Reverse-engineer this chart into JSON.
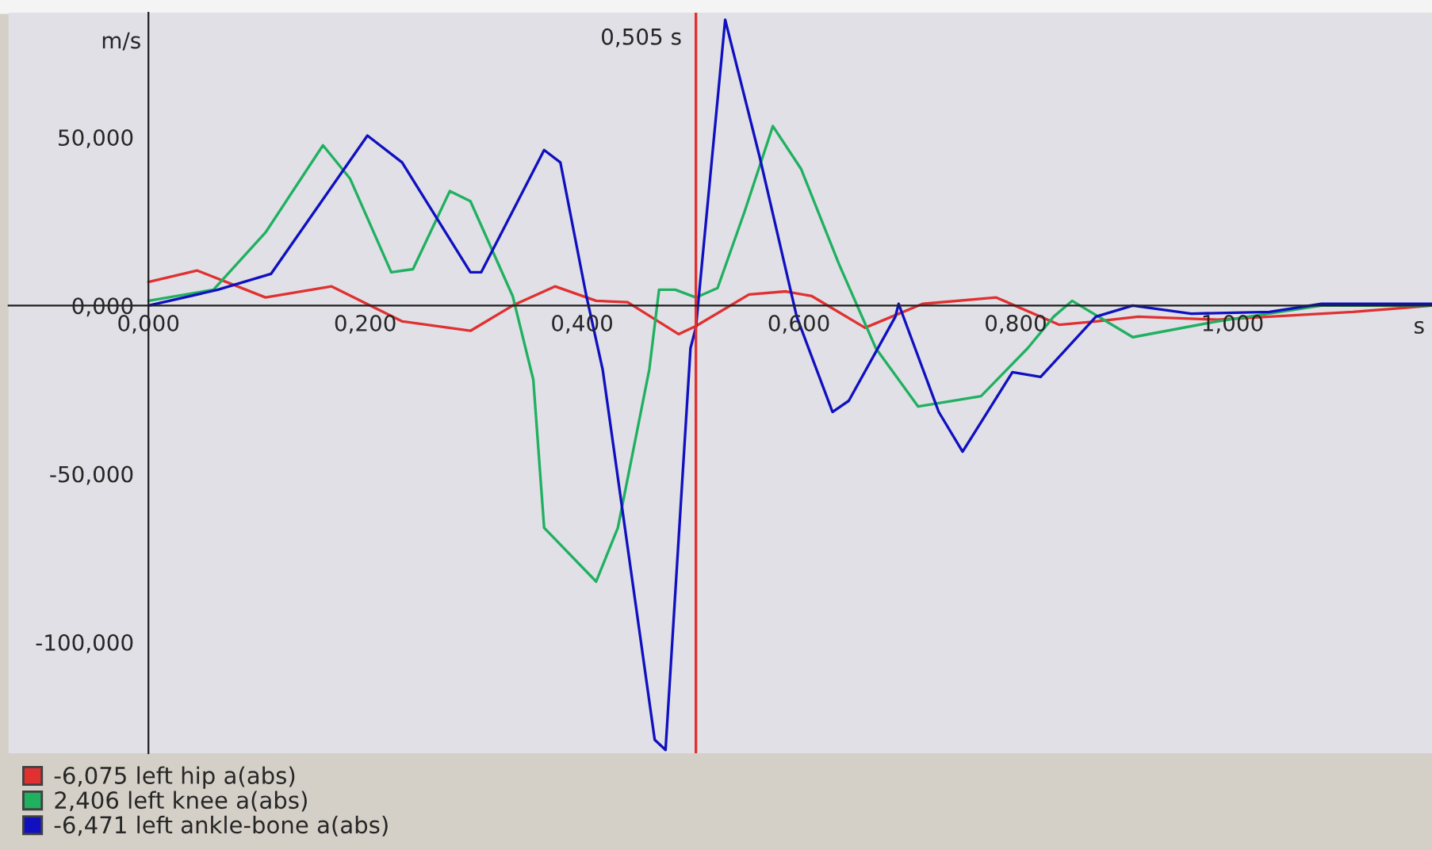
{
  "chart_data": {
    "type": "line",
    "xlabel": "s",
    "ylabel": "m/s",
    "xlim": [
      -0.129,
      1.184
    ],
    "ylim": [
      -133,
      87
    ],
    "xticks": [
      {
        "value": 0,
        "label": "0,000"
      },
      {
        "value": 0.2,
        "label": "0,200"
      },
      {
        "value": 0.4,
        "label": "0,400"
      },
      {
        "value": 0.6,
        "label": "0,600"
      },
      {
        "value": 0.8,
        "label": "0,800"
      },
      {
        "value": 1.0,
        "label": "1,000"
      }
    ],
    "yticks": [
      {
        "value": -100,
        "label": "-100,000"
      },
      {
        "value": -50,
        "label": "-50,000"
      },
      {
        "value": 0,
        "label": "0,000"
      },
      {
        "value": 50,
        "label": "50,000"
      }
    ],
    "grid": false,
    "legend": "bottom",
    "marker": "none",
    "line_style": "solid",
    "ref_lines": [
      {
        "axis": "x",
        "value": 0.505,
        "label": "0,505 s",
        "color": "#e03030"
      }
    ],
    "series": [
      {
        "name": "-6,075 left hip a(abs)",
        "color": "#e03030",
        "x": [
          0,
          0.045,
          0.108,
          0.169,
          0.234,
          0.297,
          0.336,
          0.375,
          0.413,
          0.442,
          0.489,
          0.505,
          0.554,
          0.588,
          0.612,
          0.661,
          0.714,
          0.782,
          0.84,
          0.874,
          0.913,
          0.986,
          1.111,
          1.184
        ],
        "values": [
          7,
          10.4,
          2.4,
          5.7,
          -4.7,
          -7.5,
          0,
          5.7,
          1.4,
          1,
          -8.5,
          -6.1,
          3.3,
          4.2,
          2.8,
          -6.6,
          0.5,
          2.4,
          -5.7,
          -4.7,
          -3.3,
          -4.2,
          -1.9,
          0
        ]
      },
      {
        "name": "2,406 left knee a(abs)",
        "color": "#20b060",
        "x": [
          0,
          0.06,
          0.108,
          0.161,
          0.186,
          0.224,
          0.244,
          0.278,
          0.297,
          0.336,
          0.355,
          0.365,
          0.413,
          0.433,
          0.462,
          0.471,
          0.486,
          0.505,
          0.525,
          0.55,
          0.576,
          0.602,
          0.637,
          0.671,
          0.71,
          0.768,
          0.811,
          0.835,
          0.852,
          0.908,
          0.986,
          1.082,
          1.184
        ],
        "values": [
          1.4,
          4.7,
          21.7,
          47.6,
          37.7,
          9.9,
          10.8,
          34,
          31,
          2.8,
          -22,
          -66,
          -82,
          -66,
          -19,
          4.7,
          4.7,
          2.4,
          5.2,
          28,
          53.3,
          40.6,
          12.3,
          -12.7,
          -30,
          -26.9,
          -12.7,
          -3.3,
          1.4,
          -9.4,
          -4.7,
          0,
          0
        ]
      },
      {
        "name": "-6,471 left ankle-bone a(abs)",
        "color": "#1010c0",
        "x": [
          0,
          0.064,
          0.113,
          0.157,
          0.202,
          0.234,
          0.297,
          0.307,
          0.365,
          0.38,
          0.404,
          0.419,
          0.467,
          0.477,
          0.5,
          0.505,
          0.532,
          0.564,
          0.598,
          0.631,
          0.646,
          0.689,
          0.692,
          0.729,
          0.751,
          0.797,
          0.823,
          0.874,
          0.908,
          0.962,
          1.034,
          1.082,
          1.184
        ],
        "values": [
          0,
          4.7,
          9.4,
          29.7,
          50.5,
          42.5,
          9.9,
          9.9,
          46.2,
          42.5,
          2.8,
          -19,
          -129,
          -132,
          -12.7,
          -6.5,
          84.9,
          43.9,
          -3.3,
          -31.6,
          -28.3,
          -3.3,
          0.5,
          -31.6,
          -43.4,
          -19.8,
          -21.2,
          -3.3,
          0,
          -2.4,
          -1.9,
          0.5,
          0.5
        ]
      }
    ]
  }
}
